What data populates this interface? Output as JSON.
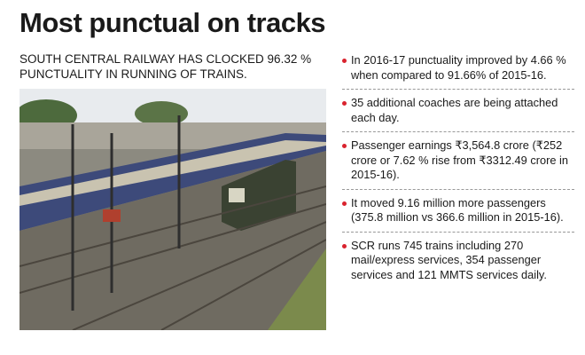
{
  "header": {
    "title": "Most punctual on tracks",
    "subtitle": "SOUTH CENTRAL RAILWAY HAS CLOCKED 96.32 % PUNCTUALITY IN RUNNING OF TRAINS."
  },
  "bullets": [
    "In 2016-17 punctuality improved by 4.66 % when compared to 91.66% of 2015-16.",
    "35 additional coaches are being attached each day.",
    "Passenger earnings ₹3,564.8 crore (₹252 crore or 7.62 % rise from ₹3312.49 crore in 2015-16).",
    "It moved 9.16 million more passengers (375.8 million vs 366.6 million in 2015-16).",
    "SCR runs 745 trains including 270 mail/express services, 354 passenger services and 121 MMTS services daily."
  ]
}
